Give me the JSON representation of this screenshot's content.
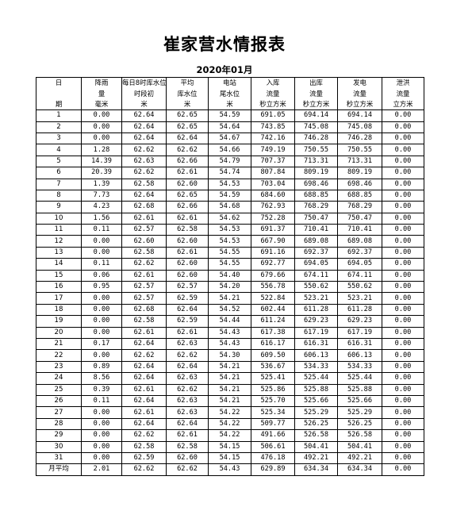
{
  "title": "崔家营水情报表",
  "subtitle": "2020年01月",
  "header": {
    "row1": [
      "日",
      "降雨",
      "每日8时库水位",
      "平均",
      "电站",
      "入库",
      "出库",
      "发电",
      "泄洪"
    ],
    "row2": [
      "",
      "量",
      "时段初",
      "库水位",
      "尾水位",
      "流量",
      "流量",
      "流量",
      "流量"
    ],
    "row3": [
      "期",
      "毫米",
      "米",
      "米",
      "米",
      "秒立方米",
      "秒立方米",
      "秒立方米",
      "立方米"
    ]
  },
  "rows": [
    [
      "1",
      "0.00",
      "62.64",
      "62.65",
      "54.59",
      "691.05",
      "694.14",
      "694.14",
      "0.00"
    ],
    [
      "2",
      "0.00",
      "62.64",
      "62.65",
      "54.64",
      "743.85",
      "745.08",
      "745.08",
      "0.00"
    ],
    [
      "3",
      "0.00",
      "62.64",
      "62.64",
      "54.67",
      "742.16",
      "746.28",
      "746.28",
      "0.00"
    ],
    [
      "4",
      "1.28",
      "62.62",
      "62.62",
      "54.66",
      "749.19",
      "750.55",
      "750.55",
      "0.00"
    ],
    [
      "5",
      "14.39",
      "62.63",
      "62.66",
      "54.79",
      "707.37",
      "713.31",
      "713.31",
      "0.00"
    ],
    [
      "6",
      "20.39",
      "62.62",
      "62.61",
      "54.74",
      "807.84",
      "809.19",
      "809.19",
      "0.00"
    ],
    [
      "7",
      "1.39",
      "62.58",
      "62.60",
      "54.53",
      "703.04",
      "698.46",
      "698.46",
      "0.00"
    ],
    [
      "8",
      "7.73",
      "62.64",
      "62.65",
      "54.59",
      "684.60",
      "688.85",
      "688.85",
      "0.00"
    ],
    [
      "9",
      "4.23",
      "62.68",
      "62.66",
      "54.68",
      "762.93",
      "768.29",
      "768.29",
      "0.00"
    ],
    [
      "10",
      "1.56",
      "62.61",
      "62.61",
      "54.62",
      "752.28",
      "750.47",
      "750.47",
      "0.00"
    ],
    [
      "11",
      "0.11",
      "62.57",
      "62.58",
      "54.53",
      "691.37",
      "710.41",
      "710.41",
      "0.00"
    ],
    [
      "12",
      "0.00",
      "62.60",
      "62.60",
      "54.53",
      "667.90",
      "689.08",
      "689.08",
      "0.00"
    ],
    [
      "13",
      "0.00",
      "62.58",
      "62.61",
      "54.55",
      "691.16",
      "692.37",
      "692.37",
      "0.00"
    ],
    [
      "14",
      "0.11",
      "62.62",
      "62.60",
      "54.55",
      "692.77",
      "694.05",
      "694.05",
      "0.00"
    ],
    [
      "15",
      "0.06",
      "62.61",
      "62.60",
      "54.40",
      "679.66",
      "674.11",
      "674.11",
      "0.00"
    ],
    [
      "16",
      "0.95",
      "62.57",
      "62.57",
      "54.20",
      "556.78",
      "550.62",
      "550.62",
      "0.00"
    ],
    [
      "17",
      "0.00",
      "62.57",
      "62.59",
      "54.21",
      "522.84",
      "523.21",
      "523.21",
      "0.00"
    ],
    [
      "18",
      "0.00",
      "62.68",
      "62.64",
      "54.52",
      "602.44",
      "611.28",
      "611.28",
      "0.00"
    ],
    [
      "19",
      "0.00",
      "62.58",
      "62.59",
      "54.44",
      "611.24",
      "629.23",
      "629.23",
      "0.00"
    ],
    [
      "20",
      "0.00",
      "62.61",
      "62.61",
      "54.43",
      "617.38",
      "617.19",
      "617.19",
      "0.00"
    ],
    [
      "21",
      "0.17",
      "62.64",
      "62.63",
      "54.43",
      "616.17",
      "616.31",
      "616.31",
      "0.00"
    ],
    [
      "22",
      "0.00",
      "62.62",
      "62.62",
      "54.30",
      "609.50",
      "606.13",
      "606.13",
      "0.00"
    ],
    [
      "23",
      "0.89",
      "62.64",
      "62.64",
      "54.21",
      "536.67",
      "534.33",
      "534.33",
      "0.00"
    ],
    [
      "24",
      "8.56",
      "62.64",
      "62.63",
      "54.21",
      "525.41",
      "525.44",
      "525.44",
      "0.00"
    ],
    [
      "25",
      "0.39",
      "62.61",
      "62.62",
      "54.21",
      "525.86",
      "525.88",
      "525.88",
      "0.00"
    ],
    [
      "26",
      "0.11",
      "62.64",
      "62.63",
      "54.21",
      "525.70",
      "525.66",
      "525.66",
      "0.00"
    ],
    [
      "27",
      "0.00",
      "62.61",
      "62.63",
      "54.22",
      "525.34",
      "525.29",
      "525.29",
      "0.00"
    ],
    [
      "28",
      "0.00",
      "62.64",
      "62.64",
      "54.22",
      "509.77",
      "526.25",
      "526.25",
      "0.00"
    ],
    [
      "29",
      "0.00",
      "62.62",
      "62.61",
      "54.22",
      "491.66",
      "526.58",
      "526.58",
      "0.00"
    ],
    [
      "30",
      "0.00",
      "62.58",
      "62.58",
      "54.15",
      "506.61",
      "504.41",
      "504.41",
      "0.00"
    ],
    [
      "31",
      "0.00",
      "62.59",
      "62.60",
      "54.15",
      "476.18",
      "492.21",
      "492.21",
      "0.00"
    ],
    [
      "月平均",
      "2.01",
      "62.62",
      "62.62",
      "54.43",
      "629.89",
      "634.34",
      "634.34",
      "0.00"
    ]
  ]
}
